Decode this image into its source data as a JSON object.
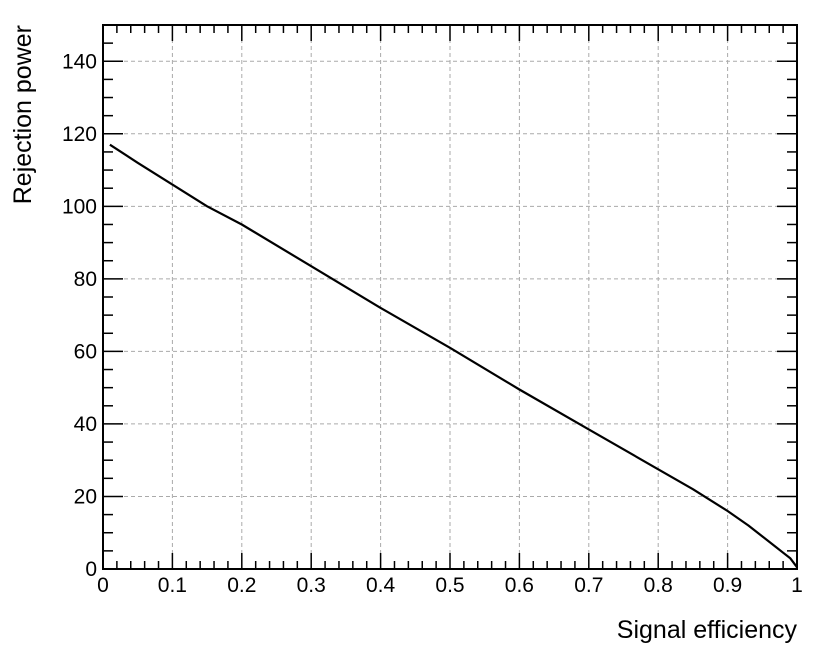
{
  "chart_data": {
    "type": "line",
    "title": "",
    "xlabel": "Signal efficiency",
    "ylabel": "Rejection power",
    "xlim": [
      0,
      1
    ],
    "ylim": [
      0,
      150
    ],
    "xticks": [
      0,
      0.1,
      0.2,
      0.3,
      0.4,
      0.5,
      0.6,
      0.7,
      0.8,
      0.9,
      1
    ],
    "xtick_labels": [
      "0",
      "0.1",
      "0.2",
      "0.3",
      "0.4",
      "0.5",
      "0.6",
      "0.7",
      "0.8",
      "0.9",
      "1"
    ],
    "yticks": [
      0,
      20,
      40,
      60,
      80,
      100,
      120,
      140
    ],
    "ytick_labels": [
      "0",
      "20",
      "40",
      "60",
      "80",
      "100",
      "120",
      "140"
    ],
    "grid": true,
    "legend": "none",
    "line_color": "#000000",
    "grid_color": "#aaaaaa",
    "series": [
      {
        "x": [
          0.01,
          0.05,
          0.1,
          0.15,
          0.2,
          0.3,
          0.4,
          0.5,
          0.6,
          0.7,
          0.8,
          0.85,
          0.9,
          0.93,
          0.95,
          0.97,
          0.98,
          0.99,
          1.0
        ],
        "y": [
          117,
          112,
          106,
          100,
          95,
          83.5,
          72,
          61,
          49.5,
          38.5,
          27.5,
          22,
          16,
          12,
          9,
          6,
          4.5,
          3,
          0.5
        ]
      }
    ]
  }
}
